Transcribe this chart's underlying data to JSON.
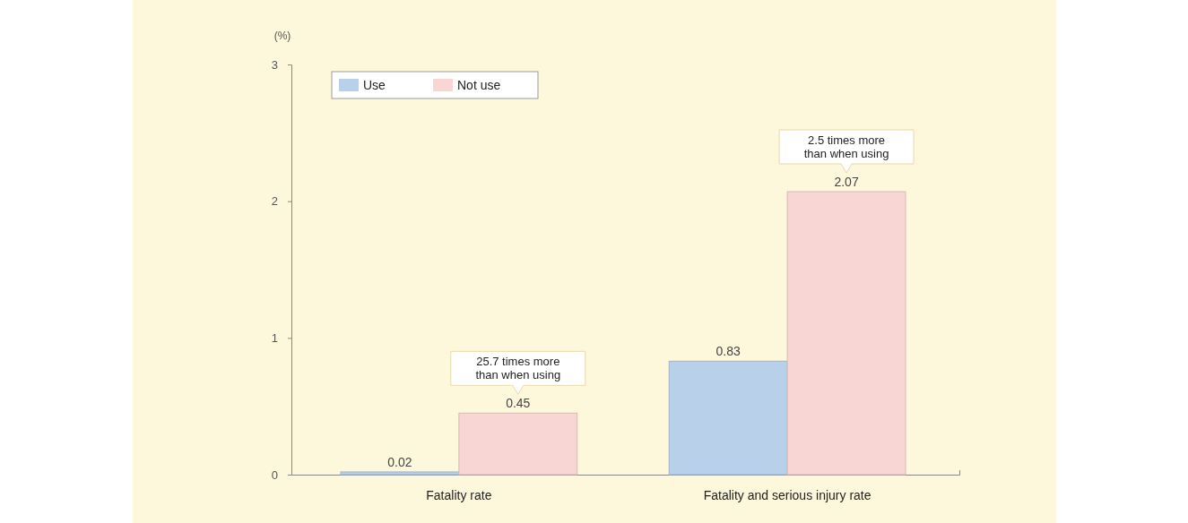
{
  "chart_data": {
    "type": "bar",
    "ylabel": "(%)",
    "categories": [
      "Fatality rate",
      "Fatality and serious injury rate"
    ],
    "series": [
      {
        "name": "Use",
        "color": "#b9d0eb",
        "values": [
          0.02,
          0.83
        ]
      },
      {
        "name": "Not use",
        "color": "#f8d6d4",
        "values": [
          0.45,
          2.07
        ]
      }
    ],
    "ylim": [
      0,
      3
    ],
    "yticks": [
      0,
      1,
      2,
      3
    ],
    "grid": false,
    "legend": "top left",
    "data_labels": true,
    "annotations": [
      "25.7 times more than when using",
      "2.5 times more than when using"
    ]
  }
}
